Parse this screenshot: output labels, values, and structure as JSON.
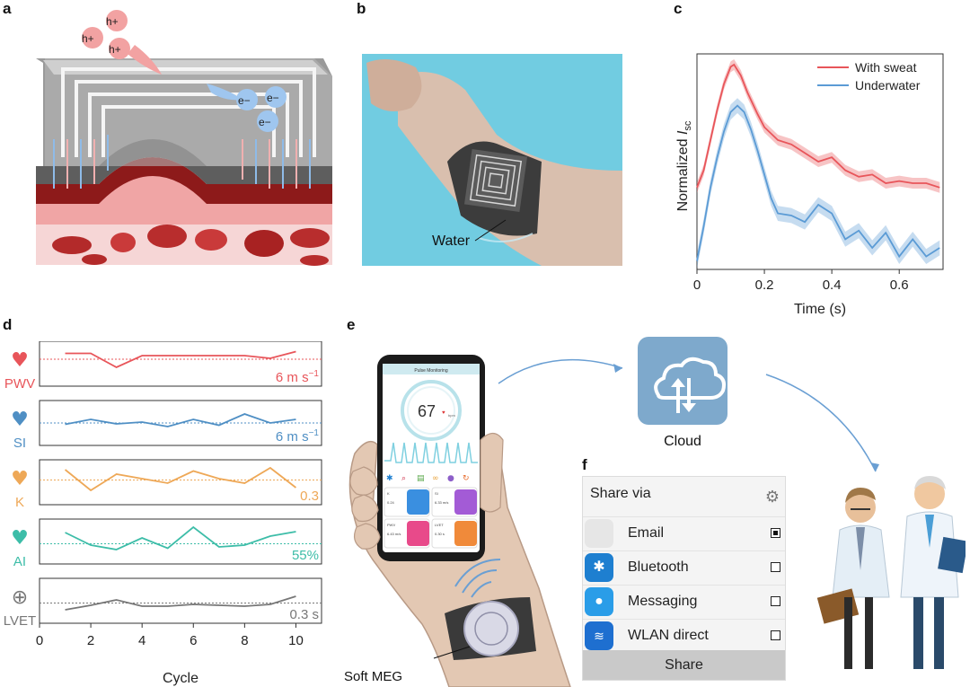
{
  "panels": {
    "a": "a",
    "b": "b",
    "c": "c",
    "d": "d",
    "e": "e",
    "f": "f"
  },
  "panel_a": {
    "holes": [
      "h+",
      "h+",
      "h+"
    ],
    "electrons": [
      "e−",
      "e−",
      "e−"
    ]
  },
  "panel_b": {
    "water_label": "Water"
  },
  "chart_data": [
    {
      "type": "line",
      "panel": "c",
      "xlabel": "Time (s)",
      "ylabel": "Normalized I_sc",
      "ylabel_main": "Normalized ",
      "ylabel_italic": "I",
      "ylabel_sub": "sc",
      "xlim": [
        0,
        0.73
      ],
      "ylim": [
        0,
        1
      ],
      "xticks": [
        0,
        0.2,
        0.4,
        0.6
      ],
      "xtick_labels": [
        "0",
        "0.2",
        "0.4",
        "0.6"
      ],
      "legend_position": "top-right",
      "grid": false,
      "series": [
        {
          "name": "With sweat",
          "color": "#e8555a",
          "x": [
            0,
            0.02,
            0.04,
            0.06,
            0.08,
            0.1,
            0.11,
            0.13,
            0.15,
            0.18,
            0.2,
            0.24,
            0.28,
            0.32,
            0.36,
            0.4,
            0.44,
            0.48,
            0.52,
            0.56,
            0.6,
            0.64,
            0.68,
            0.72
          ],
          "values": [
            0.38,
            0.46,
            0.6,
            0.74,
            0.86,
            0.94,
            0.95,
            0.9,
            0.82,
            0.72,
            0.66,
            0.6,
            0.58,
            0.54,
            0.5,
            0.52,
            0.46,
            0.43,
            0.44,
            0.4,
            0.41,
            0.4,
            0.4,
            0.38
          ]
        },
        {
          "name": "Underwater",
          "color": "#5b9bd5",
          "x": [
            0,
            0.02,
            0.04,
            0.06,
            0.08,
            0.1,
            0.12,
            0.14,
            0.16,
            0.18,
            0.2,
            0.22,
            0.24,
            0.28,
            0.32,
            0.36,
            0.4,
            0.44,
            0.48,
            0.52,
            0.56,
            0.6,
            0.64,
            0.68,
            0.72
          ],
          "values": [
            0.04,
            0.2,
            0.38,
            0.52,
            0.64,
            0.73,
            0.76,
            0.73,
            0.65,
            0.55,
            0.44,
            0.33,
            0.26,
            0.25,
            0.22,
            0.3,
            0.26,
            0.14,
            0.18,
            0.1,
            0.17,
            0.06,
            0.14,
            0.06,
            0.1
          ]
        }
      ]
    },
    {
      "type": "line",
      "panel": "d",
      "xlabel": "Cycle",
      "xlim": [
        0,
        11
      ],
      "xticks": [
        0,
        2,
        4,
        6,
        8,
        10
      ],
      "xtick_labels": [
        "0",
        "2",
        "4",
        "6",
        "8",
        "10"
      ],
      "grid": false,
      "x": [
        1,
        2,
        3,
        4,
        5,
        6,
        7,
        8,
        9,
        10
      ],
      "rows": [
        {
          "label": "PWV",
          "unit_text": "6 m s",
          "unit_sup": "−1",
          "color": "#e8555a",
          "icon": "heart-organ-icon",
          "baseline": 0.6,
          "values": [
            0.73,
            0.73,
            0.42,
            0.68,
            0.68,
            0.68,
            0.68,
            0.68,
            0.62,
            0.77
          ]
        },
        {
          "label": "SI",
          "unit_text": "6 m s",
          "unit_sup": "−1",
          "color": "#4f8fc4",
          "icon": "heartbeat-icon",
          "baseline": 0.5,
          "values": [
            0.47,
            0.58,
            0.48,
            0.52,
            0.42,
            0.58,
            0.45,
            0.7,
            0.5,
            0.58
          ]
        },
        {
          "label": "K",
          "unit_text": "0.3",
          "unit_sup": "",
          "color": "#eea857",
          "icon": "heart-badge-icon",
          "baseline": 0.55,
          "values": [
            0.78,
            0.32,
            0.68,
            0.58,
            0.48,
            0.75,
            0.58,
            0.48,
            0.82,
            0.38
          ]
        },
        {
          "label": "AI",
          "unit_text": "55%",
          "unit_sup": "",
          "color": "#3dbda8",
          "icon": "heart-icon",
          "baseline": 0.45,
          "values": [
            0.7,
            0.42,
            0.32,
            0.58,
            0.35,
            0.82,
            0.38,
            0.42,
            0.62,
            0.72
          ]
        },
        {
          "label": "LVET",
          "unit_text": "0.3 s",
          "unit_sup": "",
          "color": "#777777",
          "icon": "plus-circle-icon",
          "baseline": 0.45,
          "values": [
            0.3,
            0.4,
            0.52,
            0.38,
            0.38,
            0.42,
            0.4,
            0.38,
            0.42,
            0.6
          ]
        }
      ]
    }
  ],
  "panel_e": {
    "phone_title": "Pulse Monitoring",
    "heart_rate": "67",
    "heart_unit": "bpm",
    "tiles": [
      {
        "label": "K",
        "value": "0.24"
      },
      {
        "label": "SI",
        "value": "6.33 m/s"
      },
      {
        "label": "PWV",
        "value": "6.43 m/s"
      },
      {
        "label": "LVET",
        "value": "0.30 s"
      }
    ],
    "cloud_label": "Cloud",
    "device_label": "Soft MEG"
  },
  "panel_f": {
    "title": "Share via",
    "items": [
      {
        "label": "Email",
        "checked": true,
        "icon": "email-icon",
        "color": "#e6e6e6"
      },
      {
        "label": "Bluetooth",
        "checked": false,
        "icon": "bluetooth-icon",
        "color": "#1e7fd0"
      },
      {
        "label": "Messaging",
        "checked": false,
        "icon": "messaging-icon",
        "color": "#2a9de8"
      },
      {
        "label": "WLAN direct",
        "checked": false,
        "icon": "wlan-icon",
        "color": "#1e6fd0"
      }
    ],
    "share_button": "Share"
  }
}
